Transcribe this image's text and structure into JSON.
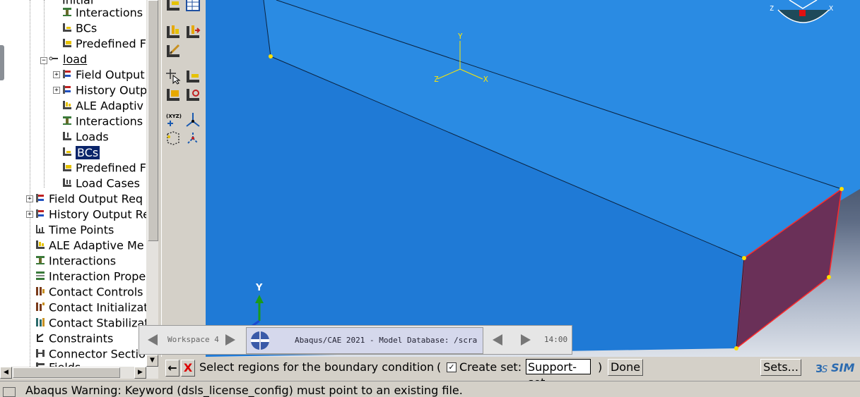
{
  "tree": {
    "items": [
      {
        "label": "Initial",
        "icon": "step-icon"
      },
      {
        "label": "Interactions",
        "icon": "interaction-icon"
      },
      {
        "label": "BCs",
        "icon": "bc-icon"
      },
      {
        "label": "Predefined F",
        "icon": "predefined-field-icon"
      },
      {
        "label": "load",
        "icon": "step-icon"
      },
      {
        "label": "Field Output",
        "icon": "field-output-icon"
      },
      {
        "label": "History Outp",
        "icon": "history-output-icon"
      },
      {
        "label": "ALE Adaptiv",
        "icon": "ale-icon"
      },
      {
        "label": "Interactions",
        "icon": "interaction-icon"
      },
      {
        "label": "Loads",
        "icon": "load-icon"
      },
      {
        "label": "BCs",
        "icon": "bc-icon"
      },
      {
        "label": "Predefined F",
        "icon": "predefined-field-icon"
      },
      {
        "label": "Load Cases",
        "icon": "load-case-icon"
      },
      {
        "label": "Field Output Req",
        "icon": "field-output-icon"
      },
      {
        "label": "History Output Re",
        "icon": "history-output-icon"
      },
      {
        "label": "Time Points",
        "icon": "time-points-icon"
      },
      {
        "label": "ALE Adaptive Me",
        "icon": "ale-icon"
      },
      {
        "label": "Interactions",
        "icon": "interaction-icon"
      },
      {
        "label": "Interaction Prope",
        "icon": "interaction-property-icon"
      },
      {
        "label": "Contact Controls",
        "icon": "contact-controls-icon"
      },
      {
        "label": "Contact Initializat",
        "icon": "contact-init-icon"
      },
      {
        "label": "Contact Stabilizat",
        "icon": "contact-stabilization-icon"
      },
      {
        "label": "Constraints",
        "icon": "constraints-icon"
      },
      {
        "label": "Connector Sectio",
        "icon": "connector-icon"
      },
      {
        "label": "Fields",
        "icon": "fields-icon"
      }
    ]
  },
  "viewport": {
    "triad_labels": {
      "y": "Y",
      "x": "X",
      "z": "Z"
    },
    "view_cube_labels": {
      "z": "Z",
      "x": "X"
    }
  },
  "taskbar": {
    "workspace": "Workspace 4",
    "window_title": "Abaqus/CAE 2021 - Model Database: /scra",
    "clock": "14:00"
  },
  "prompt": {
    "back_label": "←",
    "cancel_label": "X",
    "text": "Select regions for the boundary condition",
    "open_paren": "(",
    "checkbox_mark": "✓",
    "create_set_label": "Create set:",
    "set_name": "Support-set",
    "close_paren": ")",
    "done_label": "Done",
    "sets_label": "Sets...",
    "logo_text": "SIM"
  },
  "message": {
    "text": "Abaqus Warning: Keyword (dsls_license_config) must point to an existing file."
  },
  "colors": {
    "beam_top": "#2a8be3",
    "beam_side": "#1f7ad6",
    "selected_face": "#6a3058",
    "selection_edge": "#ff2a2a",
    "vertex": "#ffe000",
    "tree_selection": "#0a246a"
  }
}
